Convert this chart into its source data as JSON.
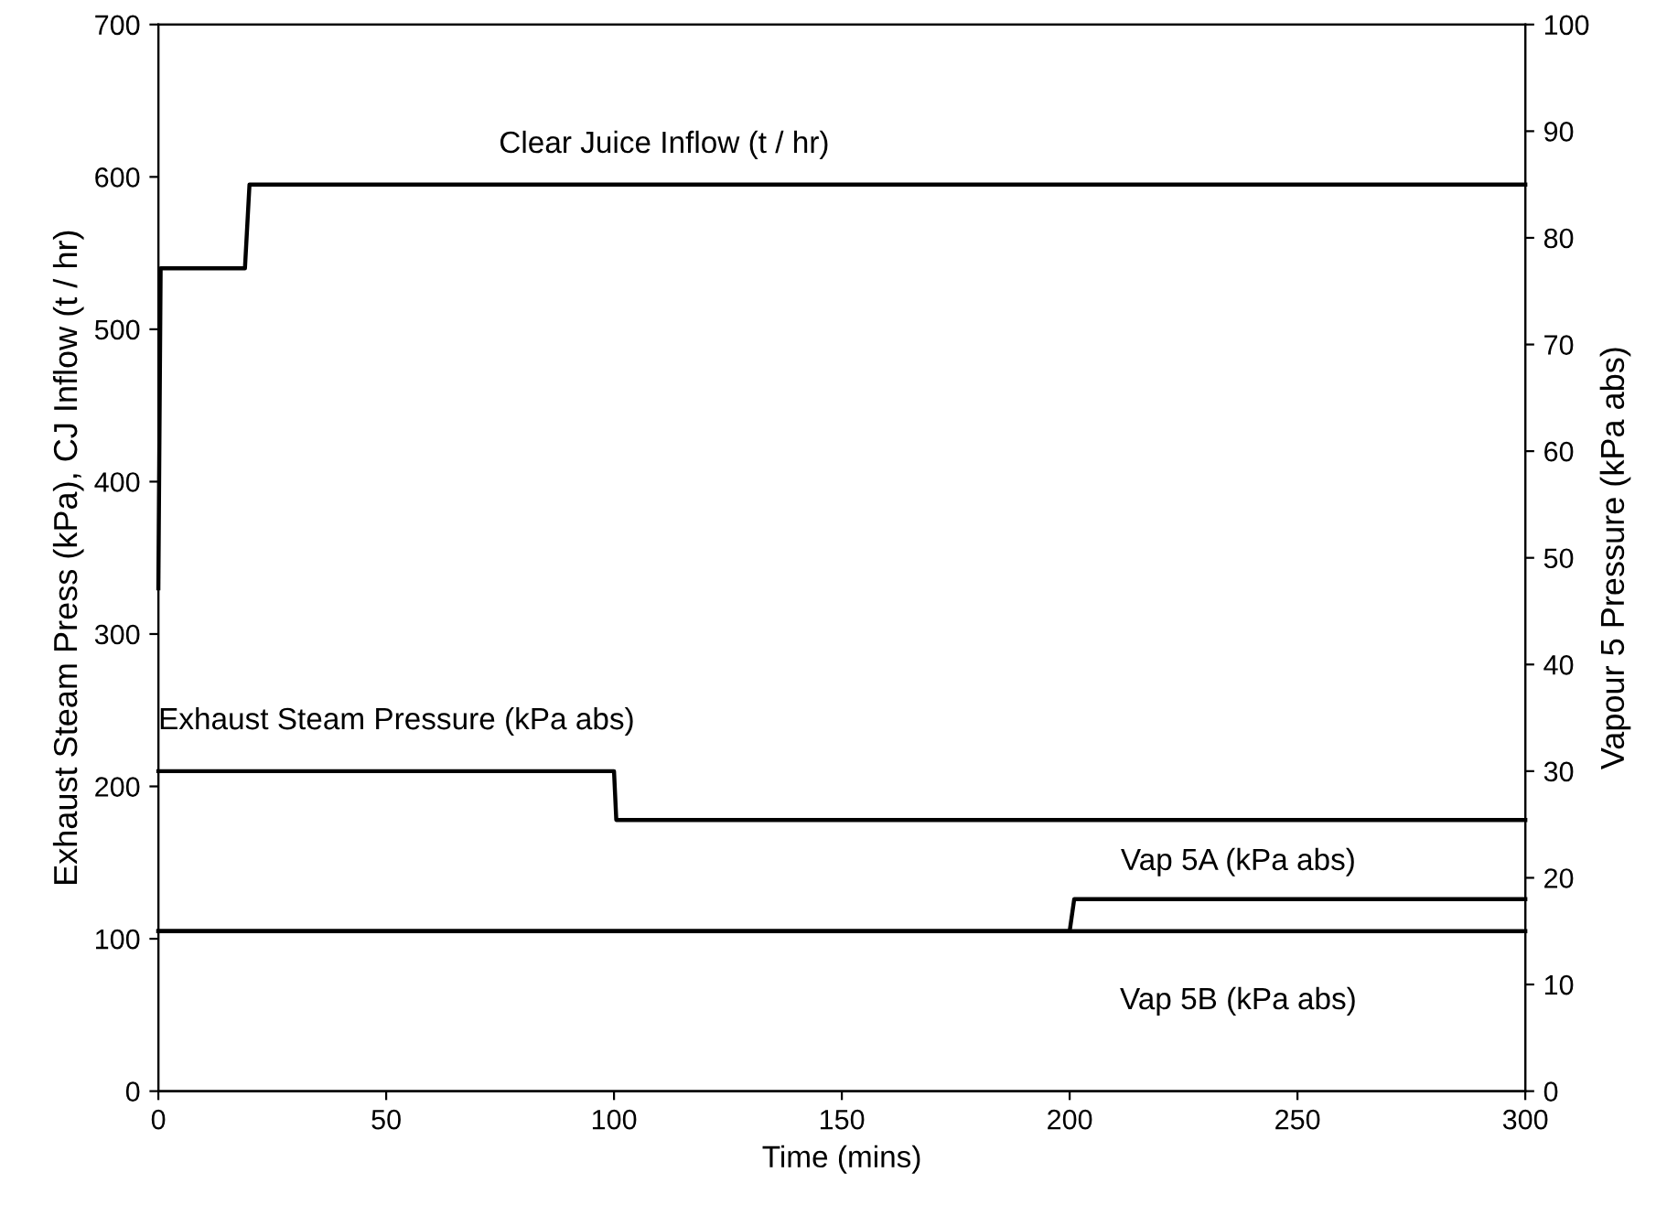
{
  "chart_data": {
    "type": "line",
    "xlabel": "Time (mins)",
    "ylabel": "Exhaust Steam Press (kPa), CJ Inflow (t / hr)",
    "y2label": "Vapour 5 Pressure (kPa abs)",
    "xlim": [
      0,
      300
    ],
    "xticks": [
      0,
      50,
      100,
      150,
      200,
      250,
      300
    ],
    "ylim": [
      0,
      700
    ],
    "yticks": [
      0,
      100,
      200,
      300,
      400,
      500,
      600,
      700
    ],
    "y2lim": [
      0,
      100
    ],
    "y2ticks": [
      0,
      10,
      20,
      30,
      40,
      50,
      60,
      70,
      80,
      90,
      100
    ],
    "grid": false,
    "legend": false,
    "marker": "none",
    "line_style": "solid",
    "series": [
      {
        "name": "Clear Juice Inflow (t / hr)",
        "color": "#000000",
        "x": [
          0,
          0.5,
          19,
          20,
          300
        ],
        "values": [
          330,
          540,
          540,
          595,
          595
        ]
      },
      {
        "name": "Exhaust Steam Pressure (kPa abs)",
        "color": "#000000",
        "x": [
          0,
          100,
          100.5,
          300
        ],
        "values": [
          210,
          210,
          178,
          178
        ]
      },
      {
        "name": "Vap 5A (kPa abs)",
        "color": "#000000",
        "axis": "y2",
        "x": [
          0,
          200,
          201,
          300
        ],
        "values": [
          15,
          15,
          18,
          18
        ]
      },
      {
        "name": "Vap 5B (kPa abs)",
        "color": "#000000",
        "axis": "y2",
        "x": [
          0,
          300
        ],
        "values": [
          15,
          15
        ]
      }
    ]
  }
}
